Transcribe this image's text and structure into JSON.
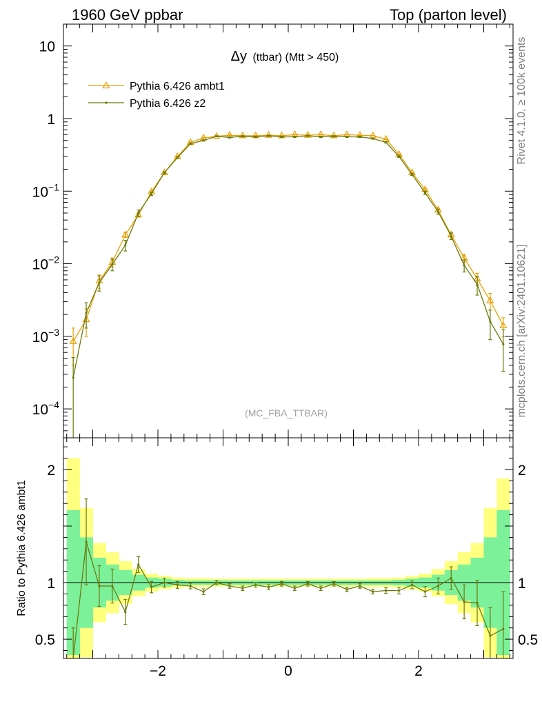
{
  "header": {
    "left": "1960 GeV ppbar",
    "right": "Top (parton level)"
  },
  "side": {
    "rivet": "Rivet 4.1.0, ≥ 100k events",
    "mcplots": "mcplots.cern.ch [arXiv:2401.10621]"
  },
  "colors": {
    "ambt1": "#e8a000",
    "z2": "#6b7a0a",
    "band_inner": "#7df09a",
    "band_outer": "#ffff80"
  },
  "chart_data": [
    {
      "type": "line",
      "title": "Δy (ttbar) (Mtt > 450)",
      "title_main": "Δy",
      "title_sub": "(ttbar) (Mtt > 450)",
      "watermark": "(MC_FBA_TTBAR)",
      "xlabel": "",
      "ylabel": "",
      "xlim": [
        -3.45,
        3.45
      ],
      "ylim": [
        4e-05,
        20
      ],
      "yscale": "log",
      "ytick_labels": [
        {
          "v": 10,
          "base": "10",
          "exp": ""
        },
        {
          "v": 1,
          "base": "1",
          "exp": ""
        },
        {
          "v": 0.1,
          "base": "10",
          "exp": "−1"
        },
        {
          "v": 0.01,
          "base": "10",
          "exp": "−2"
        },
        {
          "v": 0.001,
          "base": "10",
          "exp": "−3"
        },
        {
          "v": 0.0001,
          "base": "10",
          "exp": "−4"
        }
      ],
      "legend": [
        "Pythia 6.426 ambt1",
        "Pythia 6.426 z2"
      ],
      "x": [
        -3.3,
        -3.1,
        -2.9,
        -2.7,
        -2.5,
        -2.3,
        -2.1,
        -1.9,
        -1.7,
        -1.5,
        -1.3,
        -1.1,
        -0.9,
        -0.7,
        -0.5,
        -0.3,
        -0.1,
        0.1,
        0.3,
        0.5,
        0.7,
        0.9,
        1.1,
        1.3,
        1.5,
        1.7,
        1.9,
        2.1,
        2.3,
        2.5,
        2.7,
        2.9,
        3.1,
        3.3
      ],
      "series": [
        {
          "name": "Pythia 6.426 ambt1",
          "values": [
            0.00085,
            0.0017,
            0.0058,
            0.0105,
            0.025,
            0.047,
            0.098,
            0.18,
            0.3,
            0.47,
            0.54,
            0.57,
            0.59,
            0.58,
            0.58,
            0.59,
            0.58,
            0.6,
            0.59,
            0.6,
            0.58,
            0.6,
            0.59,
            0.58,
            0.52,
            0.32,
            0.18,
            0.105,
            0.055,
            0.025,
            0.012,
            0.0062,
            0.0031,
            0.0014
          ],
          "errors": [
            0.00045,
            0.0007,
            0.0012,
            0.0015,
            0.002,
            0.003,
            0.003,
            0.004,
            0.005,
            0.006,
            0.006,
            0.006,
            0.006,
            0.006,
            0.006,
            0.006,
            0.006,
            0.006,
            0.006,
            0.006,
            0.006,
            0.006,
            0.006,
            0.006,
            0.006,
            0.005,
            0.004,
            0.003,
            0.003,
            0.002,
            0.0015,
            0.0012,
            0.0008,
            0.0004
          ]
        },
        {
          "name": "Pythia 6.426 z2",
          "values": [
            0.00027,
            0.0021,
            0.0055,
            0.0098,
            0.018,
            0.05,
            0.092,
            0.18,
            0.29,
            0.45,
            0.5,
            0.57,
            0.55,
            0.57,
            0.56,
            0.58,
            0.56,
            0.56,
            0.58,
            0.56,
            0.57,
            0.56,
            0.56,
            0.53,
            0.47,
            0.3,
            0.17,
            0.095,
            0.052,
            0.024,
            0.0095,
            0.0052,
            0.0016,
            0.00078
          ],
          "errors": [
            0.00024,
            0.0008,
            0.0013,
            0.0018,
            0.003,
            0.005,
            0.005,
            0.006,
            0.008,
            0.01,
            0.01,
            0.01,
            0.01,
            0.01,
            0.01,
            0.01,
            0.01,
            0.01,
            0.01,
            0.01,
            0.01,
            0.01,
            0.01,
            0.01,
            0.01,
            0.008,
            0.006,
            0.005,
            0.004,
            0.0025,
            0.0018,
            0.0015,
            0.0007,
            0.00045
          ]
        }
      ]
    },
    {
      "type": "line",
      "title": "",
      "xlabel": "",
      "ylabel": "Ratio to Pythia 6.426 ambt1",
      "xlim": [
        -3.45,
        3.45
      ],
      "ylim": [
        0.33,
        2.28
      ],
      "xtick_labels": [
        {
          "v": -2,
          "label": "−2"
        },
        {
          "v": 0,
          "label": "0"
        },
        {
          "v": 2,
          "label": "2"
        }
      ],
      "ytick_labels": [
        {
          "v": 0.5,
          "label": "0.5"
        },
        {
          "v": 1,
          "label": "1"
        },
        {
          "v": 2,
          "label": "2"
        }
      ],
      "x": [
        -3.3,
        -3.1,
        -2.9,
        -2.7,
        -2.5,
        -2.3,
        -2.1,
        -1.9,
        -1.7,
        -1.5,
        -1.3,
        -1.1,
        -0.9,
        -0.7,
        -0.5,
        -0.3,
        -0.1,
        0.1,
        0.3,
        0.5,
        0.7,
        0.9,
        1.1,
        1.3,
        1.5,
        1.7,
        1.9,
        2.1,
        2.3,
        2.5,
        2.7,
        2.9,
        3.1,
        3.3
      ],
      "band_inner": [
        0.64,
        0.4,
        0.22,
        0.16,
        0.11,
        0.07,
        0.045,
        0.035,
        0.025,
        0.02,
        0.02,
        0.02,
        0.02,
        0.02,
        0.02,
        0.02,
        0.02,
        0.02,
        0.02,
        0.02,
        0.02,
        0.02,
        0.02,
        0.02,
        0.02,
        0.025,
        0.035,
        0.045,
        0.07,
        0.11,
        0.16,
        0.22,
        0.4,
        0.64
      ],
      "band_outer": [
        1.1,
        0.66,
        0.35,
        0.27,
        0.19,
        0.12,
        0.08,
        0.06,
        0.045,
        0.04,
        0.04,
        0.035,
        0.035,
        0.035,
        0.035,
        0.035,
        0.035,
        0.035,
        0.035,
        0.035,
        0.035,
        0.035,
        0.035,
        0.04,
        0.04,
        0.045,
        0.06,
        0.08,
        0.12,
        0.19,
        0.27,
        0.35,
        0.66,
        0.92
      ],
      "series": [
        {
          "name": "Pythia 6.426 z2",
          "values": [
            0.3,
            1.36,
            0.97,
            0.97,
            0.74,
            1.16,
            0.96,
            1.0,
            0.98,
            0.97,
            0.92,
            1.0,
            0.97,
            0.95,
            0.98,
            0.96,
            0.99,
            0.95,
            0.99,
            0.95,
            0.99,
            0.94,
            0.97,
            0.92,
            0.93,
            0.93,
            0.98,
            0.92,
            0.97,
            1.04,
            0.83,
            0.82,
            0.53,
            0.59
          ],
          "errors": [
            0.3,
            0.38,
            0.18,
            0.15,
            0.11,
            0.07,
            0.05,
            0.04,
            0.03,
            0.025,
            0.025,
            0.02,
            0.02,
            0.02,
            0.02,
            0.02,
            0.02,
            0.02,
            0.02,
            0.02,
            0.02,
            0.02,
            0.02,
            0.02,
            0.025,
            0.03,
            0.035,
            0.045,
            0.07,
            0.1,
            0.15,
            0.2,
            0.25,
            0.33
          ]
        }
      ]
    }
  ]
}
